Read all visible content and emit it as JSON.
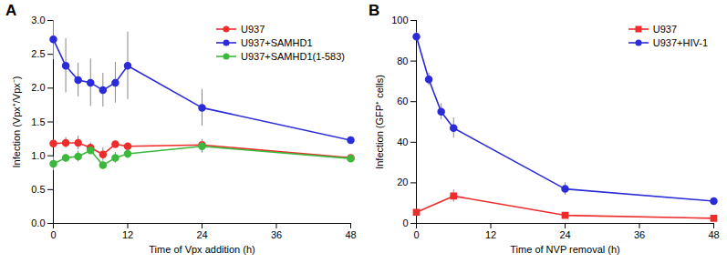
{
  "chart_data": [
    {
      "type": "line",
      "title": "A",
      "x_label": "Time of Vpx addition (h)",
      "y_label": "Infection (Vpx⁺/Vpx⁻)",
      "x": [
        0,
        2,
        4,
        6,
        8,
        10,
        12,
        24,
        48
      ],
      "xlim": [
        0,
        48
      ],
      "xticks": [
        0,
        12,
        24,
        36,
        48
      ],
      "ylim": [
        0,
        3
      ],
      "yticks": [
        {
          "value": 0,
          "label": "0.0"
        },
        {
          "value": 0.5,
          "label": "0.5"
        },
        {
          "value": 1,
          "label": "1.0"
        },
        {
          "value": 1.5,
          "label": "1.5"
        },
        {
          "value": 2,
          "label": "2.0"
        },
        {
          "value": 2.5,
          "label": "2.5"
        },
        {
          "value": 3,
          "label": "3.0"
        }
      ],
      "legend": "upper right",
      "series": [
        {
          "name": "U937",
          "color": "#ee2c2c",
          "marker": "circle",
          "values": [
            1.18,
            1.19,
            1.19,
            1.12,
            1.02,
            1.17,
            1.14,
            1.16,
            0.97
          ],
          "errors": [
            0.05,
            0.08,
            0.1,
            0.07,
            0.1,
            0.05,
            0.03,
            0.05,
            0.03
          ]
        },
        {
          "name": "U937+SAMHD1",
          "color": "#2b2bd8",
          "marker": "circle",
          "values": [
            2.72,
            2.33,
            2.12,
            2.08,
            1.97,
            2.08,
            2.33,
            1.71,
            1.23
          ],
          "errors": [
            0.3,
            0.4,
            0.25,
            0.35,
            0.25,
            0.3,
            0.5,
            0.27,
            0.07
          ]
        },
        {
          "name": "U937+SAMHD1(1-583)",
          "color": "#3cb83c",
          "marker": "circle",
          "values": [
            0.88,
            0.97,
            0.99,
            1.08,
            0.86,
            0.97,
            1.03,
            1.14,
            0.96
          ],
          "errors": [
            0.1,
            0.05,
            0.08,
            0.05,
            0.05,
            0.08,
            0.07,
            0.1,
            0.03
          ]
        }
      ]
    },
    {
      "type": "line",
      "title": "B",
      "x_label": "Time of NVP removal (h)",
      "y_label": "Infection (GFP⁺ cells)",
      "xlim": [
        0,
        48
      ],
      "xticks": [
        0,
        12,
        24,
        36,
        48
      ],
      "ylim": [
        0,
        100
      ],
      "yticks": [
        0,
        20,
        40,
        60,
        80,
        100
      ],
      "legend": "upper right",
      "series": [
        {
          "name": "U937",
          "color": "#ee2c2c",
          "marker": "square",
          "x": [
            0,
            6,
            24,
            48
          ],
          "values": [
            5.5,
            13.5,
            4,
            2.5
          ],
          "errors": [
            0.5,
            3,
            1,
            1.5
          ]
        },
        {
          "name": "U937+HIV-1",
          "color": "#2b2bd8",
          "marker": "circle",
          "x": [
            0,
            2,
            4,
            6,
            24,
            48
          ],
          "values": [
            92,
            71,
            55,
            47,
            17,
            11
          ],
          "errors": [
            2,
            3,
            4,
            5,
            3,
            6
          ]
        }
      ]
    }
  ]
}
